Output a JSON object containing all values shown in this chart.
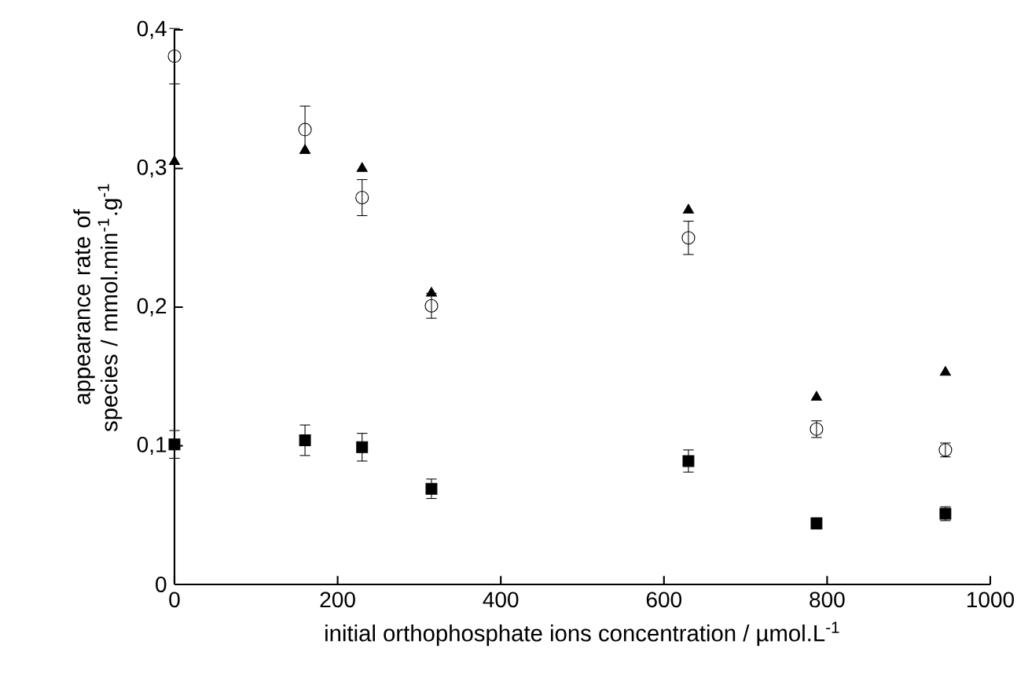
{
  "chart_data": {
    "type": "scatter",
    "xlabel": "initial orthophosphate ions concentration / µmol.L$^{-1}$",
    "ylabel": "appearance rate of  species / mmol.min$^{-1}$.g$^{-1}$",
    "x": [
      0,
      160,
      230,
      315,
      630,
      787,
      945
    ],
    "series": [
      {
        "color": "#000000",
        "marker": "circle",
        "values": [
          0.381,
          0.328,
          0.279,
          0.201,
          0.25,
          0.112,
          0.097
        ],
        "errors": [
          0.02,
          0.017,
          0.013,
          0.009,
          0.012,
          0.006,
          0.005
        ]
      },
      {
        "color": "#000000",
        "marker": "triangle",
        "values": [
          0.305,
          0.313,
          0.3,
          0.21,
          0.27,
          0.135,
          0.153
        ]
      },
      {
        "color": "#000000",
        "marker": "square",
        "values": [
          0.101,
          0.104,
          0.099,
          0.069,
          0.089,
          0.044,
          0.051
        ],
        "errors": [
          0.01,
          0.011,
          0.01,
          0.007,
          0.008,
          0.004,
          0.005
        ]
      }
    ],
    "xlim": [
      0,
      1000
    ],
    "ylim": [
      0,
      0.4
    ],
    "xticks": [
      0,
      200,
      400,
      600,
      800,
      1000
    ],
    "yticks": [
      0,
      {
        "value": 0.1,
        "label": "0,1"
      },
      {
        "value": 0.2,
        "label": "0,2"
      },
      {
        "value": 0.3,
        "label": "0,3"
      },
      {
        "value": 0.4,
        "label": "0,4"
      }
    ],
    "grid": false
  }
}
